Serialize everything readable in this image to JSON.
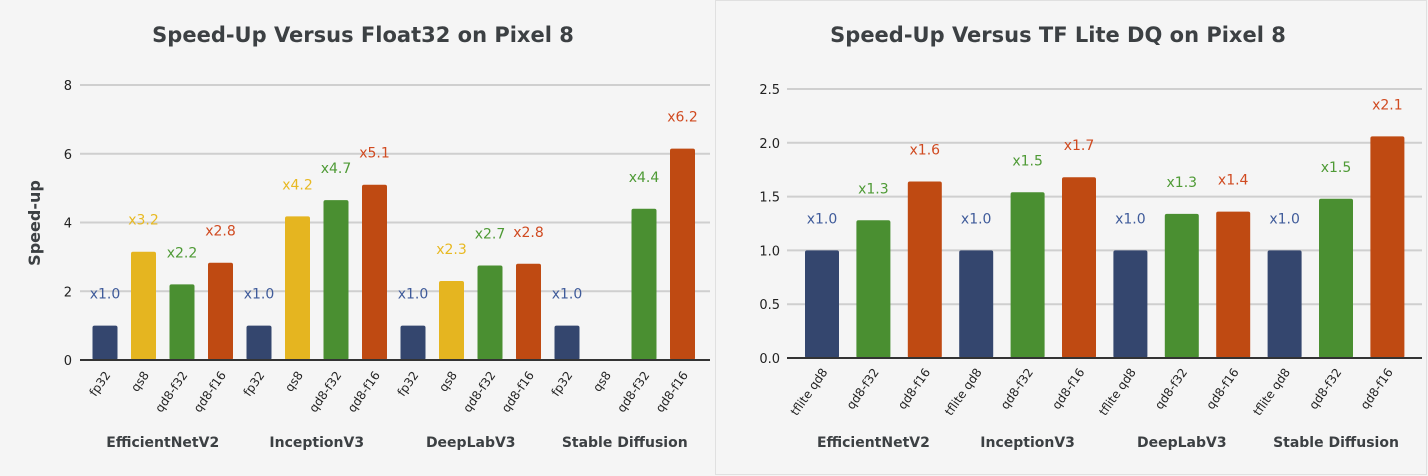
{
  "colors": {
    "fp32": "#34466e",
    "qs8": "#e5b520",
    "qd8-f32": "#4a8f31",
    "qd8-f16": "#bf4a12",
    "tflite qd8": "#34466e",
    "label_fp32": "#3f5b9a",
    "label_qs8": "#e8b922",
    "label_qd8-f32": "#4e9a35",
    "label_qd8-f16": "#d04a20",
    "label_tflite qd8": "#3f5b9a"
  },
  "chart_data": [
    {
      "type": "bar",
      "title": "Speed-Up Versus Float32 on Pixel 8",
      "ylabel": "Speed-up",
      "xlabel": "",
      "ylim": [
        0,
        8
      ],
      "yticks": [
        "0",
        "2",
        "4",
        "6",
        "8"
      ],
      "grid": true,
      "groups": [
        {
          "name": "EfficientNetV2",
          "bars": [
            {
              "cat": "fp32",
              "value": 1.0,
              "label": "x1.0"
            },
            {
              "cat": "qs8",
              "value": 3.15,
              "label": "x3.2"
            },
            {
              "cat": "qd8-f32",
              "value": 2.2,
              "label": "x2.2"
            },
            {
              "cat": "qd8-f16",
              "value": 2.83,
              "label": "x2.8"
            }
          ]
        },
        {
          "name": "InceptionV3",
          "bars": [
            {
              "cat": "fp32",
              "value": 1.0,
              "label": "x1.0"
            },
            {
              "cat": "qs8",
              "value": 4.18,
              "label": "x4.2"
            },
            {
              "cat": "qd8-f32",
              "value": 4.65,
              "label": "x4.7"
            },
            {
              "cat": "qd8-f16",
              "value": 5.1,
              "label": "x5.1"
            }
          ]
        },
        {
          "name": "DeepLabV3",
          "bars": [
            {
              "cat": "fp32",
              "value": 1.0,
              "label": "x1.0"
            },
            {
              "cat": "qs8",
              "value": 2.3,
              "label": "x2.3"
            },
            {
              "cat": "qd8-f32",
              "value": 2.75,
              "label": "x2.7"
            },
            {
              "cat": "qd8-f16",
              "value": 2.8,
              "label": "x2.8"
            }
          ]
        },
        {
          "name": "Stable Diffusion",
          "bars": [
            {
              "cat": "fp32",
              "value": 1.0,
              "label": "x1.0"
            },
            {
              "cat": "qs8",
              "value": null,
              "label": ""
            },
            {
              "cat": "qd8-f32",
              "value": 4.4,
              "label": "x4.4"
            },
            {
              "cat": "qd8-f16",
              "value": 6.15,
              "label": "x6.2"
            }
          ]
        }
      ]
    },
    {
      "type": "bar",
      "title": "Speed-Up Versus TF Lite DQ on Pixel 8",
      "ylabel": "",
      "xlabel": "",
      "ylim": [
        0,
        2.5
      ],
      "yticks": [
        "0.0",
        "0.5",
        "1.0",
        "1.5",
        "2.0",
        "2.5"
      ],
      "grid": true,
      "groups": [
        {
          "name": "EfficientNetV2",
          "bars": [
            {
              "cat": "tflite qd8",
              "value": 1.0,
              "label": "x1.0"
            },
            {
              "cat": "qd8-f32",
              "value": 1.28,
              "label": "x1.3"
            },
            {
              "cat": "qd8-f16",
              "value": 1.64,
              "label": "x1.6"
            }
          ]
        },
        {
          "name": "InceptionV3",
          "bars": [
            {
              "cat": "tflite qd8",
              "value": 1.0,
              "label": "x1.0"
            },
            {
              "cat": "qd8-f32",
              "value": 1.54,
              "label": "x1.5"
            },
            {
              "cat": "qd8-f16",
              "value": 1.68,
              "label": "x1.7"
            }
          ]
        },
        {
          "name": "DeepLabV3",
          "bars": [
            {
              "cat": "tflite qd8",
              "value": 1.0,
              "label": "x1.0"
            },
            {
              "cat": "qd8-f32",
              "value": 1.34,
              "label": "x1.3"
            },
            {
              "cat": "qd8-f16",
              "value": 1.36,
              "label": "x1.4"
            }
          ]
        },
        {
          "name": "Stable Diffusion",
          "bars": [
            {
              "cat": "tflite qd8",
              "value": 1.0,
              "label": "x1.0"
            },
            {
              "cat": "qd8-f32",
              "value": 1.48,
              "label": "x1.5"
            },
            {
              "cat": "qd8-f16",
              "value": 2.06,
              "label": "x2.1"
            }
          ]
        }
      ]
    }
  ]
}
